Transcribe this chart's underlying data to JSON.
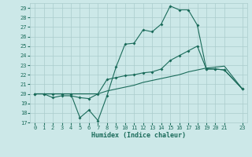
{
  "xlabel": "Humidex (Indice chaleur)",
  "xlim": [
    -0.5,
    23.5
  ],
  "ylim": [
    17,
    29.5
  ],
  "yticks": [
    17,
    18,
    19,
    20,
    21,
    22,
    23,
    24,
    25,
    26,
    27,
    28,
    29
  ],
  "xticks": [
    0,
    1,
    2,
    3,
    4,
    5,
    6,
    7,
    8,
    9,
    10,
    11,
    12,
    13,
    14,
    15,
    16,
    17,
    18,
    19,
    20,
    21,
    23
  ],
  "xtick_labels": [
    "0",
    "1",
    "2",
    "3",
    "4",
    "5",
    "6",
    "7",
    "8",
    "9",
    "10",
    "11",
    "12",
    "13",
    "14",
    "15",
    "16",
    "17",
    "18",
    "19",
    "20",
    "21",
    "23"
  ],
  "background_color": "#cce8e8",
  "grid_color": "#aacccc",
  "line_color": "#1a6b5a",
  "x_line1": [
    0,
    1,
    2,
    3,
    4,
    5,
    6,
    7,
    8,
    9,
    10,
    11,
    12,
    13,
    14,
    15,
    16,
    17,
    18,
    19,
    20,
    21,
    23
  ],
  "y_line1": [
    20.0,
    20.0,
    20.0,
    20.0,
    20.0,
    17.5,
    18.3,
    17.2,
    19.8,
    22.8,
    25.2,
    25.3,
    26.7,
    26.5,
    27.3,
    29.2,
    28.8,
    28.8,
    27.2,
    22.6,
    22.6,
    22.5,
    20.5
  ],
  "x_line2": [
    0,
    1,
    2,
    3,
    4,
    5,
    6,
    7,
    8,
    9,
    10,
    11,
    12,
    13,
    14,
    15,
    16,
    17,
    18,
    19,
    20,
    21,
    23
  ],
  "y_line2": [
    20.0,
    20.0,
    19.6,
    19.8,
    19.8,
    19.6,
    19.5,
    20.0,
    21.5,
    21.7,
    21.9,
    22.0,
    22.2,
    22.3,
    22.6,
    23.5,
    24.0,
    24.5,
    25.0,
    22.6,
    22.6,
    22.5,
    20.5
  ],
  "x_line3": [
    0,
    1,
    2,
    3,
    4,
    5,
    6,
    7,
    8,
    9,
    10,
    11,
    12,
    13,
    14,
    15,
    16,
    17,
    18,
    19,
    20,
    21,
    23
  ],
  "y_line3": [
    20.0,
    20.0,
    20.0,
    20.0,
    20.0,
    20.0,
    20.0,
    20.0,
    20.3,
    20.5,
    20.7,
    20.9,
    21.2,
    21.4,
    21.6,
    21.8,
    22.0,
    22.3,
    22.5,
    22.7,
    22.8,
    22.9,
    20.5
  ]
}
